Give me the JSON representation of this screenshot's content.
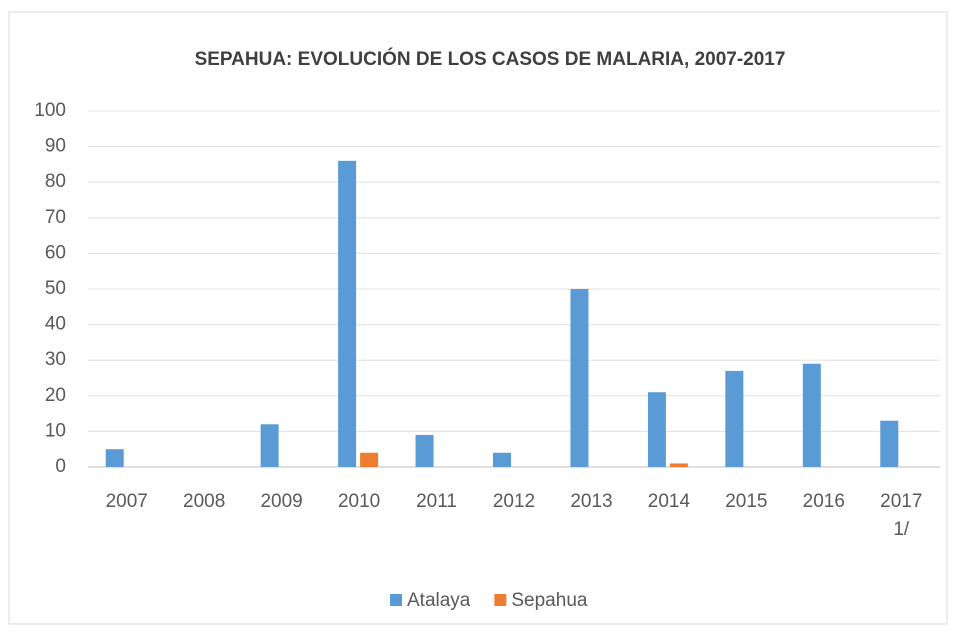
{
  "chart_data": {
    "type": "bar",
    "title": "SEPAHUA: EVOLUCIÓN DE LOS CASOS DE MALARIA,  2007-2017",
    "categories": [
      "2007",
      "2008",
      "2009",
      "2010",
      "2011",
      "2012",
      "2013",
      "2014",
      "2015",
      "2016",
      "2017 1/"
    ],
    "series": [
      {
        "name": "Atalaya",
        "color": "#5b9bd5",
        "values": [
          5,
          0,
          12,
          86,
          9,
          4,
          50,
          21,
          27,
          29,
          13
        ]
      },
      {
        "name": "Sepahua",
        "color": "#ed7d31",
        "values": [
          0,
          0,
          0,
          4,
          0,
          0,
          0,
          1,
          0,
          0,
          0
        ]
      }
    ],
    "ylim": [
      0,
      100
    ],
    "yticks": [
      0,
      10,
      20,
      30,
      40,
      50,
      60,
      70,
      80,
      90,
      100
    ],
    "grid": true,
    "legend": "bottom"
  }
}
